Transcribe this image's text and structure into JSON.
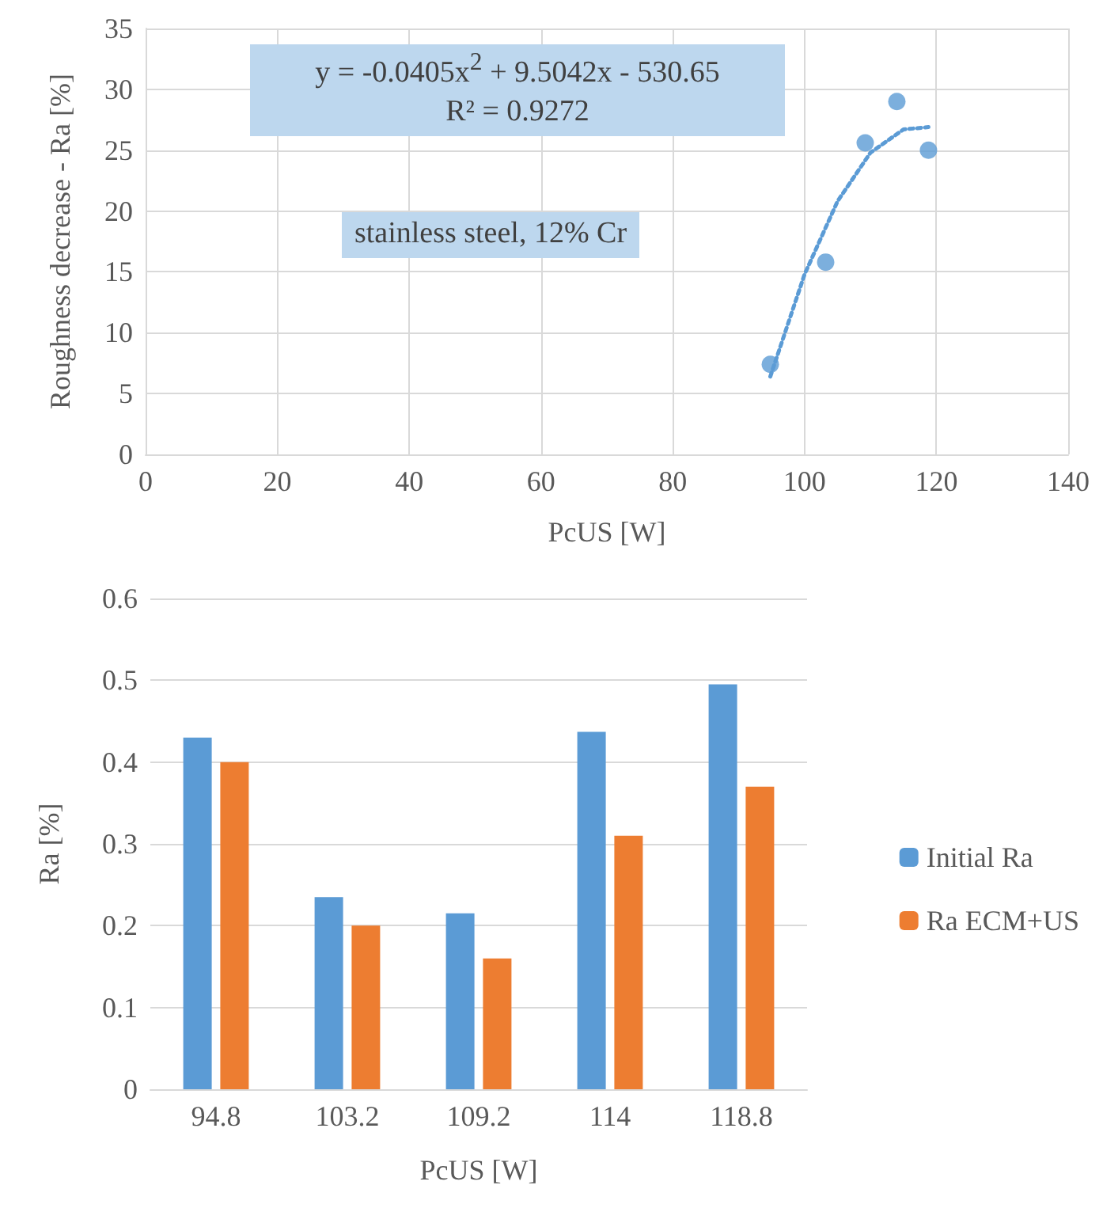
{
  "chart_data": [
    {
      "type": "scatter",
      "xlabel": "PcUS [W]",
      "ylabel": "Roughness decrease - Ra [%]",
      "xlim": [
        0,
        140
      ],
      "xticks": [
        0,
        20,
        40,
        60,
        80,
        100,
        120,
        140
      ],
      "ylim": [
        0,
        35
      ],
      "yticks": [
        0,
        5,
        10,
        15,
        20,
        25,
        30,
        35
      ],
      "grid": true,
      "legend": false,
      "annotations": [
        "y = -0.0405x$^{2}$ + 9.5042x - 530.65",
        "R² = 0.9272",
        "stainless steel, 12% Cr"
      ],
      "series": [
        {
          "type": "scatter",
          "color": "#5b9bd5",
          "marker": "circle",
          "x": [
            94.8,
            103.2,
            109.2,
            114,
            118.8
          ],
          "values": [
            7.4,
            15.8,
            25.6,
            29,
            25
          ]
        },
        {
          "type": "line",
          "color": "#5b9bd5",
          "marker": "none",
          "line_style": "dotted",
          "x": [
            94.8,
            100,
            105,
            110,
            115,
            118.8
          ],
          "values": [
            6.4,
            14.8,
            20.8,
            24.8,
            26.7,
            26.9
          ]
        }
      ]
    },
    {
      "type": "bar",
      "xlabel": "PcUS [W]",
      "ylabel": "Ra [%]",
      "categories": [
        "94.8",
        "103.2",
        "109.2",
        "114",
        "118.8"
      ],
      "ylim": [
        0,
        0.6
      ],
      "yticks": [
        0,
        0.1,
        0.2,
        0.3,
        0.4,
        0.5,
        0.6
      ],
      "grid": "y",
      "legend": "right",
      "series": [
        {
          "name": "Initial Ra",
          "color": "#5b9bd5",
          "values": [
            0.43,
            0.235,
            0.215,
            0.437,
            0.495
          ]
        },
        {
          "name": "Ra ECM+US",
          "color": "#ed7d31",
          "values": [
            0.4,
            0.2,
            0.16,
            0.31,
            0.37
          ]
        }
      ]
    }
  ]
}
